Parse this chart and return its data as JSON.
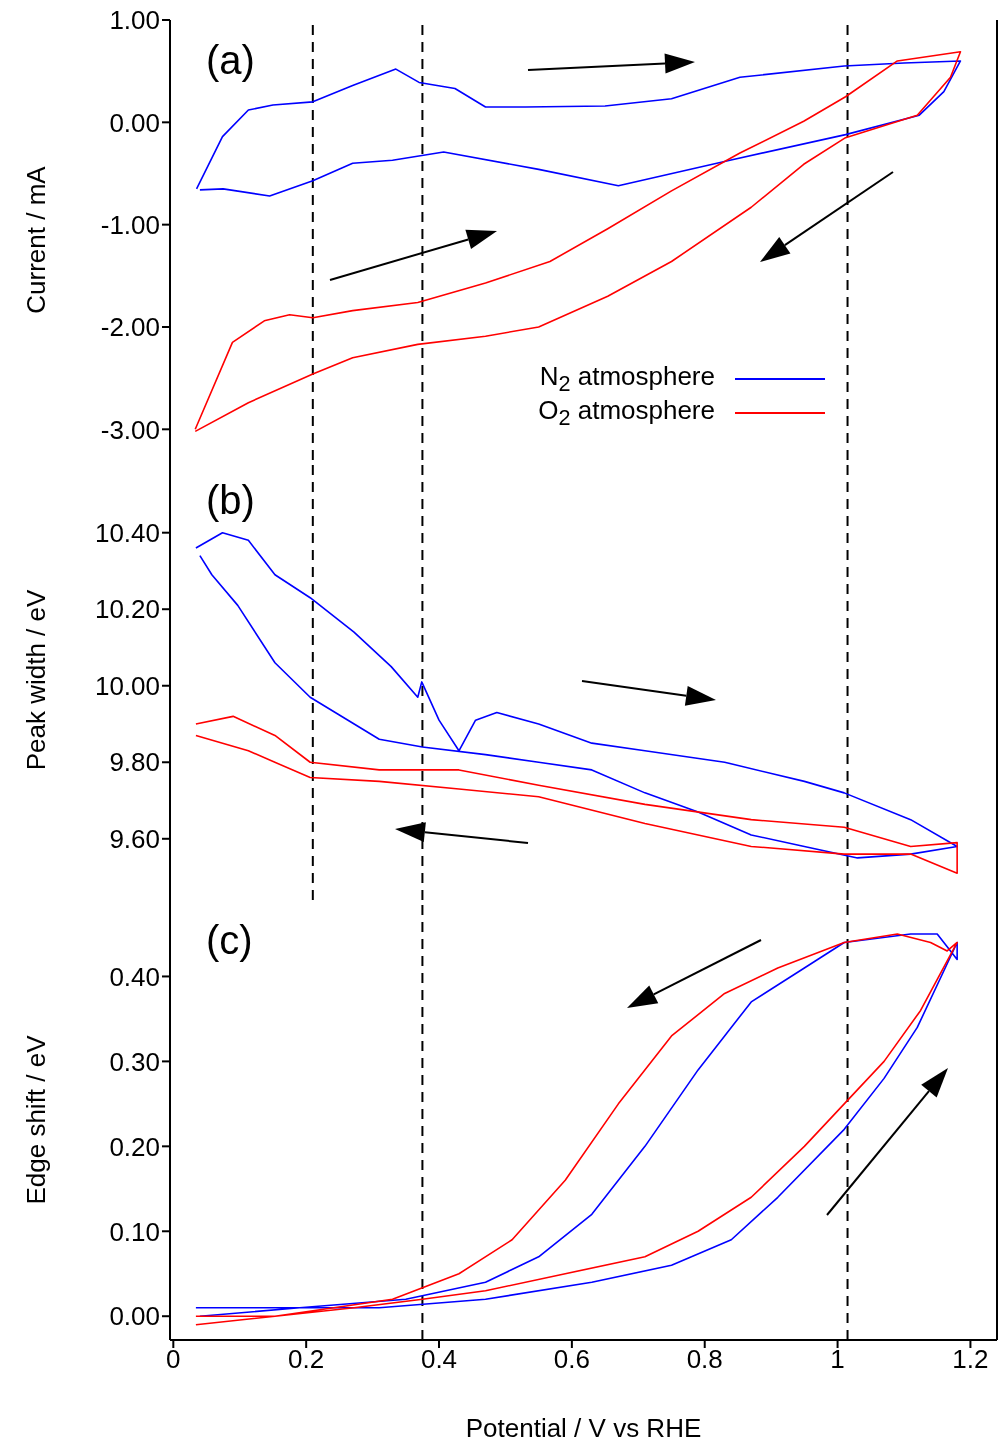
{
  "chart_data": [
    {
      "type": "line",
      "ylabel": "Current / mA",
      "annotations": [
        "(a)"
      ],
      "xlim": [
        -0.005,
        1.24
      ],
      "xticks": [
        0,
        0.2,
        0.4,
        0.6,
        0.8,
        1,
        1.2
      ],
      "ylim": [
        -3.3,
        1.0
      ],
      "yticks": [
        {
          "value": -3,
          "label": "-3.00"
        },
        {
          "value": -2,
          "label": "-2.00"
        },
        {
          "value": -1,
          "label": "-1.00"
        },
        {
          "value": 0,
          "label": "0.00"
        },
        {
          "value": 1,
          "label": "1.00"
        }
      ],
      "tick_labels": "y",
      "legend": "bottom right",
      "ref_lines": [
        {
          "axis": "x",
          "value": 0.21,
          "color": "#000000",
          "line_style": "dashed"
        },
        {
          "axis": "x",
          "value": 0.375,
          "color": "#000000",
          "line_style": "dashed"
        },
        {
          "axis": "x",
          "value": 1.015,
          "color": "#000000",
          "line_style": "dashed"
        }
      ],
      "series": [
        {
          "name": "N$_{2}$ atmosphere",
          "color": "#0000ff",
          "x": [
            0.035,
            0.074,
            0.113,
            0.15,
            0.21,
            0.27,
            0.335,
            0.37,
            0.424,
            0.47,
            0.53,
            0.65,
            0.75,
            0.853,
            1.01,
            1.1,
            1.185,
            1.16,
            1.123,
            1.012,
            0.838,
            0.67,
            0.55,
            0.407,
            0.33,
            0.27,
            0.21,
            0.145,
            0.075,
            0.04
          ],
          "values": [
            -0.65,
            -0.14,
            0.12,
            0.17,
            0.2,
            0.36,
            0.52,
            0.39,
            0.33,
            0.15,
            0.15,
            0.16,
            0.23,
            0.44,
            0.55,
            0.58,
            0.6,
            0.3,
            0.07,
            -0.12,
            -0.37,
            -0.62,
            -0.46,
            -0.29,
            -0.37,
            -0.4,
            -0.57,
            -0.72,
            -0.65,
            -0.66
          ]
        },
        {
          "name": "O$_{2}$ atmosphere",
          "color": "#ff0000",
          "x": [
            0.033,
            0.089,
            0.137,
            0.175,
            0.21,
            0.27,
            0.368,
            0.47,
            0.567,
            0.654,
            0.75,
            0.853,
            0.949,
            1.012,
            1.09,
            1.185,
            1.17,
            1.12,
            1.012,
            0.949,
            0.87,
            0.75,
            0.654,
            0.55,
            0.47,
            0.368,
            0.27,
            0.21,
            0.113,
            0.033
          ],
          "values": [
            -3.0,
            -2.15,
            -1.94,
            -1.88,
            -1.91,
            -1.84,
            -1.76,
            -1.57,
            -1.36,
            -1.04,
            -0.67,
            -0.3,
            0.01,
            0.25,
            0.6,
            0.69,
            0.44,
            0.07,
            -0.15,
            -0.41,
            -0.83,
            -1.36,
            -1.7,
            -2.0,
            -2.09,
            -2.17,
            -2.3,
            -2.46,
            -2.74,
            -3.02
          ]
        }
      ]
    },
    {
      "type": "line",
      "ylabel": "Peak width / eV",
      "annotations": [
        "(b)"
      ],
      "xlim": [
        -0.005,
        1.24
      ],
      "xticks": [
        0,
        0.2,
        0.4,
        0.6,
        0.8,
        1,
        1.2
      ],
      "ylim": [
        9.44,
        10.59
      ],
      "yticks": [
        {
          "value": 9.6,
          "label": "9.60"
        },
        {
          "value": 9.8,
          "label": "9.80"
        },
        {
          "value": 10,
          "label": "10.00"
        },
        {
          "value": 10.2,
          "label": "10.20"
        },
        {
          "value": 10.4,
          "label": "10.40"
        }
      ],
      "tick_labels": "y",
      "ref_lines": [
        {
          "axis": "x",
          "value": 0.21,
          "color": "#000000",
          "line_style": "dashed"
        },
        {
          "axis": "x",
          "value": 0.375,
          "color": "#000000",
          "line_style": "dashed"
        },
        {
          "axis": "x",
          "value": 1.015,
          "color": "#000000",
          "line_style": "dashed"
        }
      ],
      "series": [
        {
          "color": "#0000ff",
          "x": [
            0.034,
            0.074,
            0.113,
            0.153,
            0.206,
            0.272,
            0.328,
            0.368,
            0.374,
            0.4,
            0.43,
            0.455,
            0.487,
            0.55,
            0.63,
            0.71,
            0.83,
            0.95,
            1.01,
            1.11,
            1.18,
            1.18,
            1.11,
            1.03,
            0.95,
            0.87,
            0.79,
            0.71,
            0.63,
            0.55,
            0.47,
            0.375,
            0.31,
            0.206,
            0.153,
            0.097,
            0.058,
            0.04
          ],
          "values": [
            10.36,
            10.4,
            10.38,
            10.29,
            10.23,
            10.14,
            10.05,
            9.97,
            10.01,
            9.91,
            9.83,
            9.91,
            9.93,
            9.9,
            9.85,
            9.83,
            9.8,
            9.75,
            9.72,
            9.65,
            9.58,
            9.58,
            9.56,
            9.55,
            9.58,
            9.61,
            9.67,
            9.72,
            9.78,
            9.8,
            9.82,
            9.84,
            9.86,
            9.97,
            10.06,
            10.21,
            10.29,
            10.34
          ]
        },
        {
          "color": "#ff0000",
          "x": [
            0.034,
            0.09,
            0.153,
            0.206,
            0.31,
            0.43,
            0.55,
            0.71,
            0.87,
            1.01,
            1.11,
            1.18,
            1.18,
            1.11,
            1.01,
            0.87,
            0.71,
            0.55,
            0.43,
            0.31,
            0.206,
            0.113,
            0.034
          ],
          "values": [
            9.9,
            9.92,
            9.87,
            9.8,
            9.78,
            9.78,
            9.74,
            9.69,
            9.65,
            9.63,
            9.58,
            9.59,
            9.51,
            9.56,
            9.56,
            9.58,
            9.64,
            9.71,
            9.73,
            9.75,
            9.76,
            9.83,
            9.87
          ]
        }
      ]
    },
    {
      "type": "line",
      "xlabel": "Potential / V vs RHE",
      "ylabel": "Edge shift / eV",
      "annotations": [
        "(c)"
      ],
      "xlim": [
        -0.005,
        1.24
      ],
      "xticks": [
        0,
        0.2,
        0.4,
        0.6,
        0.8,
        1,
        1.2
      ],
      "ylim": [
        -0.028,
        0.49
      ],
      "yticks": [
        {
          "value": 0,
          "label": "0.00"
        },
        {
          "value": 0.1,
          "label": "0.10"
        },
        {
          "value": 0.2,
          "label": "0.20"
        },
        {
          "value": 0.3,
          "label": "0.30"
        },
        {
          "value": 0.4,
          "label": "0.40"
        }
      ],
      "ref_lines": [
        {
          "axis": "x",
          "value": 0.375,
          "color": "#000000",
          "line_style": "dashed"
        },
        {
          "axis": "x",
          "value": 1.015,
          "color": "#000000",
          "line_style": "dashed"
        }
      ],
      "series": [
        {
          "color": "#0000ff",
          "x": [
            0.034,
            0.153,
            0.31,
            0.47,
            0.63,
            0.75,
            0.84,
            0.91,
            1.01,
            1.07,
            1.12,
            1.18,
            1.18,
            1.15,
            1.11,
            1.01,
            0.95,
            0.87,
            0.79,
            0.71,
            0.63,
            0.55,
            0.47,
            0.35,
            0.19,
            0.04
          ],
          "values": [
            0.01,
            0.01,
            0.01,
            0.02,
            0.04,
            0.06,
            0.09,
            0.14,
            0.22,
            0.28,
            0.34,
            0.44,
            0.42,
            0.45,
            0.45,
            0.44,
            0.41,
            0.37,
            0.29,
            0.2,
            0.12,
            0.07,
            0.04,
            0.02,
            0.01,
            0.0
          ]
        },
        {
          "color": "#ff0000",
          "x": [
            0.034,
            0.153,
            0.272,
            0.375,
            0.47,
            0.59,
            0.71,
            0.79,
            0.87,
            0.95,
            1.01,
            1.07,
            1.125,
            1.18,
            1.165,
            1.14,
            1.09,
            1.01,
            0.91,
            0.83,
            0.75,
            0.67,
            0.59,
            0.51,
            0.43,
            0.33,
            0.153,
            0.034
          ],
          "values": [
            -0.01,
            0.0,
            0.01,
            0.02,
            0.03,
            0.05,
            0.07,
            0.1,
            0.14,
            0.2,
            0.25,
            0.3,
            0.36,
            0.44,
            0.43,
            0.44,
            0.45,
            0.44,
            0.41,
            0.38,
            0.33,
            0.25,
            0.16,
            0.09,
            0.05,
            0.02,
            0.0,
            0.0
          ]
        }
      ]
    }
  ]
}
